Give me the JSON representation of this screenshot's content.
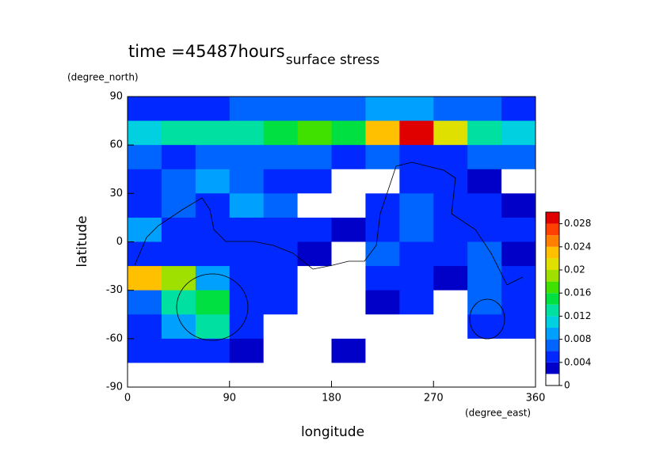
{
  "chart_data": {
    "type": "contour",
    "title": "surface stress",
    "subtitle": "time =45487hours",
    "x_label": "longitude",
    "x_unit": "(degree_east)",
    "y_label": "latitude",
    "y_unit": "(degree_north)",
    "xlim": [
      0,
      360
    ],
    "xticks": [
      0,
      90,
      180,
      270,
      360
    ],
    "ylim": [
      -90,
      90
    ],
    "yticks": [
      -90,
      -60,
      -30,
      0,
      30,
      60,
      90
    ],
    "x": [
      15,
      45,
      75,
      105,
      135,
      165,
      195,
      225,
      255,
      285,
      315,
      345
    ],
    "y": [
      82.5,
      67.5,
      52.5,
      37.5,
      22.5,
      7.5,
      -7.5,
      -22.5,
      -37.5,
      -52.5,
      -67.5,
      -82.5
    ],
    "z": [
      [
        0.005,
        0.004,
        0.005,
        0.006,
        0.006,
        0.006,
        0.007,
        0.008,
        0.008,
        0.007,
        0.006,
        0.005
      ],
      [
        0.011,
        0.012,
        0.013,
        0.012,
        0.014,
        0.016,
        0.015,
        0.022,
        0.028,
        0.02,
        0.013,
        0.011
      ],
      [
        0.006,
        0.005,
        0.006,
        0.007,
        0.006,
        0.006,
        0.005,
        0.006,
        0.005,
        0.005,
        0.006,
        0.006
      ],
      [
        0.005,
        0.007,
        0.009,
        0.006,
        0.005,
        0.004,
        0,
        0,
        0.004,
        0.005,
        0.003,
        0
      ],
      [
        0.004,
        0.006,
        0.005,
        0.009,
        0.006,
        0,
        0,
        0.004,
        0.007,
        0.005,
        0.004,
        0.003
      ],
      [
        0.008,
        0.005,
        0.005,
        0.005,
        0.005,
        0.004,
        0.003,
        0.005,
        0.006,
        0.005,
        0.004,
        0.004
      ],
      [
        0.004,
        0.005,
        0.004,
        0.005,
        0.004,
        0.003,
        0,
        0.006,
        0.005,
        0.004,
        0.006,
        0.003
      ],
      [
        0.022,
        0.018,
        0.008,
        0.004,
        0.004,
        0,
        0,
        0.005,
        0.004,
        0.003,
        0.006,
        0.005
      ],
      [
        0.006,
        0.012,
        0.014,
        0.005,
        0.004,
        0,
        0,
        0.003,
        0.004,
        0,
        0.006,
        0.004
      ],
      [
        0.004,
        0.008,
        0.012,
        0.004,
        0,
        0,
        0,
        0,
        0,
        0,
        0.004,
        0.004
      ],
      [
        0.004,
        0.005,
        0.004,
        0.003,
        0,
        0,
        0.003,
        0,
        0,
        0,
        0,
        0
      ],
      [
        0,
        0,
        0,
        0,
        0,
        0,
        0,
        0,
        0,
        0,
        0,
        0
      ]
    ],
    "colorbar": {
      "ylim": [
        0,
        0.03
      ],
      "yticks": [
        0,
        0.004,
        0.008,
        0.012,
        0.016,
        0.02,
        0.024,
        0.028
      ],
      "levels": [
        0,
        0.002,
        0.004,
        0.006,
        0.008,
        0.01,
        0.012,
        0.014,
        0.016,
        0.018,
        0.02,
        0.022,
        0.024,
        0.026,
        0.028,
        0.03
      ],
      "colors": [
        "#ffffff",
        "#0000c8",
        "#0028ff",
        "#0064ff",
        "#00a0ff",
        "#00d0e0",
        "#00e0a0",
        "#00e040",
        "#40e000",
        "#a0e000",
        "#e0e000",
        "#ffc000",
        "#ff8000",
        "#ff4000",
        "#e00000"
      ]
    }
  }
}
